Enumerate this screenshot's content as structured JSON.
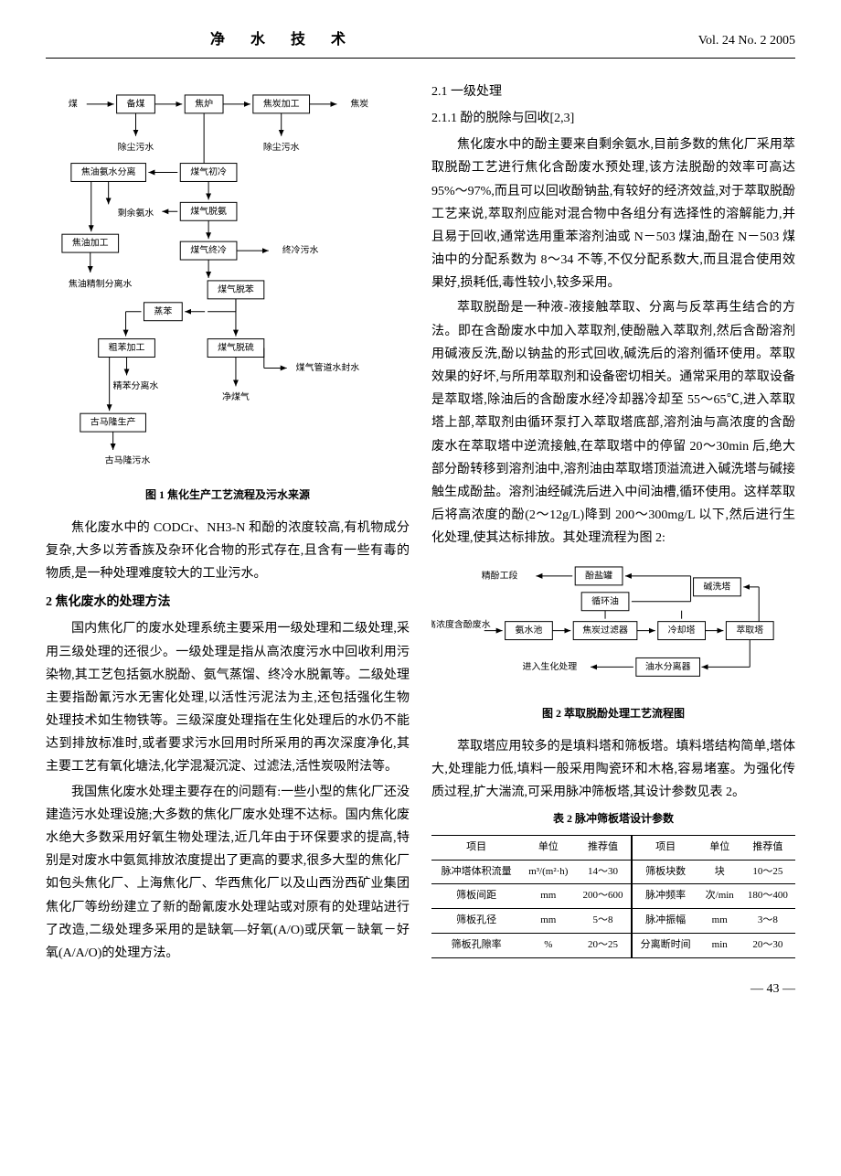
{
  "header": {
    "journal": "净 水 技 术",
    "issue": "Vol. 24 No. 2 2005"
  },
  "figure1": {
    "caption": "图 1  焦化生产工艺流程及污水来源",
    "nodes": {
      "n1": "煤",
      "n2": "备煤",
      "n3": "焦炉",
      "n4": "焦炭加工",
      "n5": "焦炭",
      "n6": "除尘污水",
      "n7": "除尘污水",
      "n8": "焦油氨水分离",
      "n9": "煤气初冷",
      "n10": "剩余氨水",
      "n11": "煤气脱氨",
      "n12": "焦油加工",
      "n13": "煤气终冷",
      "n14": "终冷污水",
      "n15": "焦油精制分离水",
      "n16": "蒸苯",
      "n17": "煤气脱苯",
      "n18": "粗苯加工",
      "n19": "煤气脱硫",
      "n20": "精苯分离水",
      "n21": "煤气管道水封水",
      "n22": "净煤气",
      "n23": "古马隆生产",
      "n24": "古马隆污水"
    }
  },
  "left_col": {
    "p1": "焦化废水中的 CODCr、NH3-N 和酚的浓度较高,有机物成分复杂,大多以芳香族及杂环化合物的形式存在,且含有一些有毒的物质,是一种处理难度较大的工业污水。",
    "h2": "2  焦化废水的处理方法",
    "p2": "国内焦化厂的废水处理系统主要采用一级处理和二级处理,采用三级处理的还很少。一级处理是指从高浓度污水中回收利用污染物,其工艺包括氨水脱酚、氨气蒸馏、终冷水脱氰等。二级处理主要指酚氰污水无害化处理,以活性污泥法为主,还包括强化生物处理技术如生物铁等。三级深度处理指在生化处理后的水仍不能达到排放标准时,或者要求污水回用时所采用的再次深度净化,其主要工艺有氧化塘法,化学混凝沉淀、过滤法,活性炭吸附法等。",
    "p3": "我国焦化废水处理主要存在的问题有:一些小型的焦化厂还没建造污水处理设施;大多数的焦化厂废水处理不达标。国内焦化废水绝大多数采用好氧生物处理法,近几年由于环保要求的提高,特别是对废水中氨氮排放浓度提出了更高的要求,很多大型的焦化厂如包头焦化厂、上海焦化厂、华西焦化厂以及山西汾西矿业集团焦化厂等纷纷建立了新的酚氰废水处理站或对原有的处理站进行了改造,二级处理多采用的是缺氧—好氧(A/O)或厌氧－缺氧－好氧(A/A/O)的处理方法。"
  },
  "right_col": {
    "h21": "2.1  一级处理",
    "h211": "2.1.1  酚的脱除与回收[2,3]",
    "p1": "焦化废水中的酚主要来自剩余氨水,目前多数的焦化厂采用萃取脱酚工艺进行焦化含酚废水预处理,该方法脱酚的效率可高达 95%～97%,而且可以回收酚钠盐,有较好的经济效益,对于萃取脱酚工艺来说,萃取剂应能对混合物中各组分有选择性的溶解能力,并且易于回收,通常选用重苯溶剂油或 N－503 煤油,酚在 N－503 煤油中的分配系数为 8～34 不等,不仅分配系数大,而且混合使用效果好,损耗低,毒性较小,较多采用。",
    "p2": "萃取脱酚是一种液-液接触萃取、分离与反萃再生结合的方法。即在含酚废水中加入萃取剂,使酚融入萃取剂,然后含酚溶剂用碱液反洗,酚以钠盐的形式回收,碱洗后的溶剂循环使用。萃取效果的好坏,与所用萃取剂和设备密切相关。通常采用的萃取设备是萃取塔,除油后的含酚废水经冷却器冷却至 55～65℃,进入萃取塔上部,萃取剂由循环泵打入萃取塔底部,溶剂油与高浓度的含酚废水在萃取塔中逆流接触,在萃取塔中的停留 20～30min 后,绝大部分酚转移到溶剂油中,溶剂油由萃取塔顶溢流进入碱洗塔与碱接触生成酚盐。溶剂油经碱洗后进入中间油槽,循环使用。这样萃取后将高浓度的酚(2～12g/L)降到 200～300mg/L 以下,然后进行生化处理,使其达标排放。其处理流程为图 2:",
    "p3": "萃取塔应用较多的是填料塔和筛板塔。填料塔结构简单,塔体大,处理能力低,填料一般采用陶瓷环和木格,容易堵塞。为强化传质过程,扩大湍流,可采用脉冲筛板塔,其设计参数见表 2。"
  },
  "figure2": {
    "caption": "图 2  萃取脱酚处理工艺流程图",
    "nodes": {
      "n1": "精酚工段",
      "n2": "酚盐罐",
      "n3": "碱洗塔",
      "n4": "循环油",
      "n5": "高浓度含酚废水",
      "n6": "氨水池",
      "n7": "焦炭过滤器",
      "n8": "冷却塔",
      "n9": "萃取塔",
      "n10": "进入生化处理",
      "n11": "油水分离器"
    }
  },
  "table2": {
    "title": "表 2  脉冲筛板塔设计参数",
    "columns": [
      "项目",
      "单位",
      "推荐值",
      "项目",
      "单位",
      "推荐值"
    ],
    "rows": [
      [
        "脉冲塔体积流量",
        "m³/(m²·h)",
        "14～30",
        "筛板块数",
        "块",
        "10～25"
      ],
      [
        "筛板间距",
        "mm",
        "200～600",
        "脉冲频率",
        "次/min",
        "180～400"
      ],
      [
        "筛板孔径",
        "mm",
        "5～8",
        "脉冲振幅",
        "mm",
        "3～8"
      ],
      [
        "筛板孔隙率",
        "%",
        "20～25",
        "分离断时间",
        "min",
        "20～30"
      ]
    ]
  },
  "page": "— 43 —"
}
